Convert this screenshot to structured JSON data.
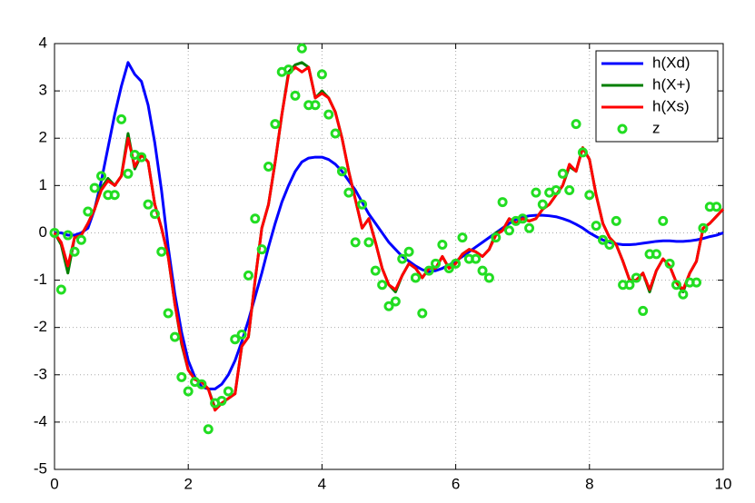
{
  "chart_data": {
    "type": "line",
    "x": [
      0,
      0.1,
      0.2,
      0.3,
      0.4,
      0.5,
      0.6,
      0.7,
      0.8,
      0.9,
      1,
      1.1,
      1.2,
      1.3,
      1.4,
      1.5,
      1.6,
      1.7,
      1.8,
      1.9,
      2,
      2.1,
      2.2,
      2.3,
      2.4,
      2.5,
      2.6,
      2.7,
      2.8,
      2.9,
      3,
      3.1,
      3.2,
      3.3,
      3.4,
      3.5,
      3.6,
      3.7,
      3.8,
      3.9,
      4,
      4.1,
      4.2,
      4.3,
      4.4,
      4.5,
      4.6,
      4.7,
      4.8,
      4.9,
      5,
      5.1,
      5.2,
      5.3,
      5.4,
      5.5,
      5.6,
      5.7,
      5.8,
      5.9,
      6,
      6.1,
      6.2,
      6.3,
      6.4,
      6.5,
      6.6,
      6.7,
      6.8,
      6.9,
      7,
      7.1,
      7.2,
      7.3,
      7.4,
      7.5,
      7.6,
      7.7,
      7.8,
      7.9,
      8,
      8.1,
      8.2,
      8.3,
      8.4,
      8.5,
      8.6,
      8.7,
      8.8,
      8.9,
      9,
      9.1,
      9.2,
      9.3,
      9.4,
      9.5,
      9.6,
      9.7,
      9.8,
      9.9,
      10
    ],
    "series": [
      {
        "name": "h(Xd)",
        "color": "#0000ff",
        "mode": "lines",
        "values": [
          0,
          0,
          -0.05,
          -0.05,
          0,
          0.1,
          0.5,
          1.1,
          1.8,
          2.5,
          3.1,
          3.6,
          3.35,
          3.2,
          2.7,
          1.9,
          0.9,
          -0.3,
          -1.3,
          -2.1,
          -2.7,
          -3.05,
          -3.25,
          -3.3,
          -3.3,
          -3.2,
          -3,
          -2.7,
          -2.3,
          -1.85,
          -1.35,
          -0.85,
          -0.3,
          0.2,
          0.65,
          1,
          1.3,
          1.5,
          1.58,
          1.6,
          1.6,
          1.55,
          1.45,
          1.3,
          1.1,
          0.9,
          0.65,
          0.4,
          0.2,
          0,
          -0.2,
          -0.35,
          -0.5,
          -0.6,
          -0.7,
          -0.78,
          -0.82,
          -0.8,
          -0.75,
          -0.68,
          -0.6,
          -0.5,
          -0.4,
          -0.3,
          -0.2,
          -0.1,
          0,
          0.1,
          0.2,
          0.28,
          0.33,
          0.36,
          0.37,
          0.37,
          0.36,
          0.34,
          0.3,
          0.25,
          0.18,
          0.1,
          0,
          -0.08,
          -0.15,
          -0.2,
          -0.23,
          -0.25,
          -0.25,
          -0.24,
          -0.22,
          -0.2,
          -0.18,
          -0.17,
          -0.17,
          -0.18,
          -0.18,
          -0.17,
          -0.15,
          -0.12,
          -0.08,
          -0.05,
          0
        ]
      },
      {
        "name": "h(X+)",
        "color": "#007f00",
        "mode": "lines",
        "values": [
          0,
          -0.25,
          -0.85,
          -0.1,
          -0.05,
          0.2,
          0.5,
          0.95,
          1.15,
          1.0,
          1.2,
          2.1,
          1.35,
          1.65,
          1.5,
          0.6,
          0.1,
          -0.5,
          -1.5,
          -2.35,
          -2.9,
          -3.1,
          -3.15,
          -3.3,
          -3.7,
          -3.6,
          -3.5,
          -3.4,
          -2.4,
          -2.2,
          -1.0,
          0.1,
          0.6,
          1.5,
          2.5,
          3.4,
          3.55,
          3.6,
          3.5,
          2.85,
          3.0,
          2.85,
          2.55,
          2.0,
          1.3,
          0.7,
          0.1,
          0.3,
          -0.2,
          -0.75,
          -1.1,
          -1.25,
          -0.9,
          -0.65,
          -0.75,
          -0.95,
          -0.75,
          -0.75,
          -0.5,
          -0.75,
          -0.65,
          -0.45,
          -0.35,
          -0.4,
          -0.5,
          -0.35,
          0,
          0.05,
          0.3,
          0.2,
          0.3,
          0.25,
          0.3,
          0.5,
          0.6,
          0.8,
          1.0,
          1.4,
          1.3,
          1.8,
          1.55,
          0.8,
          0.2,
          -0.1,
          -0.25,
          -0.6,
          -1.0,
          -1.0,
          -0.85,
          -1.25,
          -0.8,
          -0.55,
          -0.7,
          -1.05,
          -1.25,
          -0.85,
          -0.6,
          0.1,
          0.2,
          0.35,
          0.5
        ]
      },
      {
        "name": "h(Xs)",
        "color": "#ff0000",
        "mode": "lines",
        "values": [
          0,
          -0.2,
          -0.7,
          -0.1,
          -0.05,
          0.2,
          0.5,
          0.9,
          1.1,
          1.0,
          1.2,
          2.0,
          1.4,
          1.65,
          1.5,
          0.6,
          0.1,
          -0.5,
          -1.5,
          -2.3,
          -2.9,
          -3.1,
          -3.15,
          -3.3,
          -3.75,
          -3.6,
          -3.5,
          -3.4,
          -2.4,
          -2.2,
          -1.0,
          0.1,
          0.6,
          1.5,
          2.5,
          3.35,
          3.5,
          3.4,
          3.5,
          2.85,
          2.95,
          2.85,
          2.55,
          2.0,
          1.3,
          0.7,
          0.1,
          0.3,
          -0.2,
          -0.75,
          -1.1,
          -1.2,
          -0.9,
          -0.65,
          -0.75,
          -0.95,
          -0.75,
          -0.75,
          -0.5,
          -0.75,
          -0.65,
          -0.45,
          -0.35,
          -0.4,
          -0.5,
          -0.35,
          -0.05,
          0.05,
          0.3,
          0.2,
          0.3,
          0.25,
          0.3,
          0.5,
          0.6,
          0.8,
          1.0,
          1.45,
          1.3,
          1.8,
          1.55,
          0.8,
          0.2,
          -0.1,
          -0.25,
          -0.6,
          -1.0,
          -1.0,
          -0.85,
          -1.2,
          -0.8,
          -0.55,
          -0.7,
          -1.05,
          -1.2,
          -0.85,
          -0.6,
          0.1,
          0.2,
          0.35,
          0.5
        ]
      },
      {
        "name": "z",
        "color": "#22dd22",
        "mode": "markers",
        "values": [
          0,
          -1.2,
          -0.05,
          -0.4,
          -0.15,
          0.45,
          0.95,
          1.2,
          0.8,
          0.8,
          2.4,
          1.25,
          1.65,
          1.6,
          0.6,
          0.4,
          -0.4,
          -1.7,
          -2.2,
          -3.05,
          -3.35,
          -3.15,
          -3.2,
          -4.15,
          -3.6,
          -3.55,
          -3.35,
          -2.25,
          -2.15,
          -0.9,
          0.3,
          -0.35,
          1.4,
          2.3,
          3.4,
          3.45,
          2.9,
          3.9,
          2.7,
          2.7,
          3.35,
          2.5,
          2.1,
          1.3,
          0.85,
          -0.2,
          0.6,
          -0.2,
          -0.8,
          -1.1,
          -1.55,
          -1.45,
          -0.55,
          -0.4,
          -0.95,
          -1.7,
          -0.8,
          -0.65,
          -0.25,
          -0.75,
          -0.65,
          -0.1,
          -0.55,
          -0.55,
          -0.8,
          -0.95,
          -0.1,
          0.65,
          0.05,
          0.25,
          0.3,
          0.1,
          0.85,
          0.6,
          0.85,
          0.9,
          1.25,
          0.9,
          2.3,
          1.7,
          0.8,
          0.15,
          -0.15,
          -0.25,
          0.25,
          -1.1,
          -1.1,
          -0.95,
          -1.65,
          -0.45,
          -0.45,
          0.25,
          -0.65,
          -1.1,
          -1.3,
          -1.05,
          -1.05,
          0.1,
          0.55,
          0.55,
          null
        ]
      }
    ],
    "xlim": [
      0,
      10
    ],
    "ylim": [
      -5,
      4
    ],
    "xticks": [
      0,
      2,
      4,
      6,
      8,
      10
    ],
    "yticks": [
      -5,
      -4,
      -3,
      -2,
      -1,
      0,
      1,
      2,
      3,
      4
    ],
    "grid": true,
    "legend": "upper right"
  }
}
